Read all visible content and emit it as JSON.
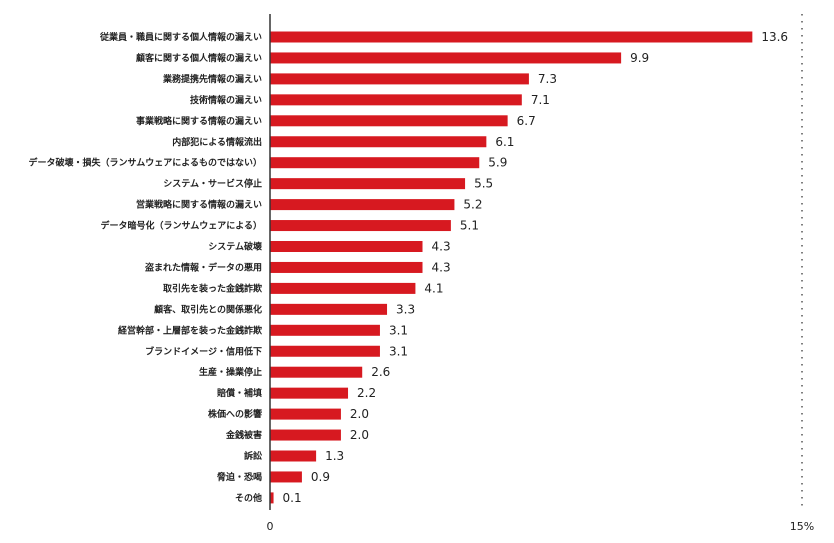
{
  "chart_data": {
    "type": "bar",
    "orientation": "horizontal",
    "categories": [
      "従業員・職員に関する個人情報の漏えい",
      "顧客に関する個人情報の漏えい",
      "業務提携先情報の漏えい",
      "技術情報の漏えい",
      "事業戦略に関する情報の漏えい",
      "内部犯による情報流出",
      "データ破壊・損失（ランサムウェアによるものではない）",
      "システム・サービス停止",
      "営業戦略に関する情報の漏えい",
      "データ暗号化（ランサムウェアによる）",
      "システム破壊",
      "盗まれた情報・データの悪用",
      "取引先を装った金銭詐欺",
      "顧客、取引先との関係悪化",
      "経営幹部・上層部を装った金銭詐欺",
      "ブランドイメージ・信用低下",
      "生産・操業停止",
      "賠償・補填",
      "株価への影響",
      "金銭被害",
      "訴訟",
      "脅迫・恐喝",
      "その他"
    ],
    "values": [
      13.6,
      9.9,
      7.3,
      7.1,
      6.7,
      6.1,
      5.9,
      5.5,
      5.2,
      5.1,
      4.3,
      4.3,
      4.1,
      3.3,
      3.1,
      3.1,
      2.6,
      2.2,
      2.0,
      2.0,
      1.3,
      0.9,
      0.1
    ],
    "value_labels": [
      "13.6",
      "9.9",
      "7.3",
      "7.1",
      "6.7",
      "6.1",
      "5.9",
      "5.5",
      "5.2",
      "5.1",
      "4.3",
      "4.3",
      "4.1",
      "3.3",
      "3.1",
      "3.1",
      "2.6",
      "2.2",
      "2.0",
      "2.0",
      "1.3",
      "0.9",
      "0.1"
    ],
    "xlim": [
      0,
      15
    ],
    "x_min_label": "0",
    "x_max_label": "15%",
    "bar_color": "#d71920",
    "axis_color": "#333333",
    "gridline_at_max": "dotted",
    "title": "",
    "xlabel": "",
    "ylabel": ""
  }
}
